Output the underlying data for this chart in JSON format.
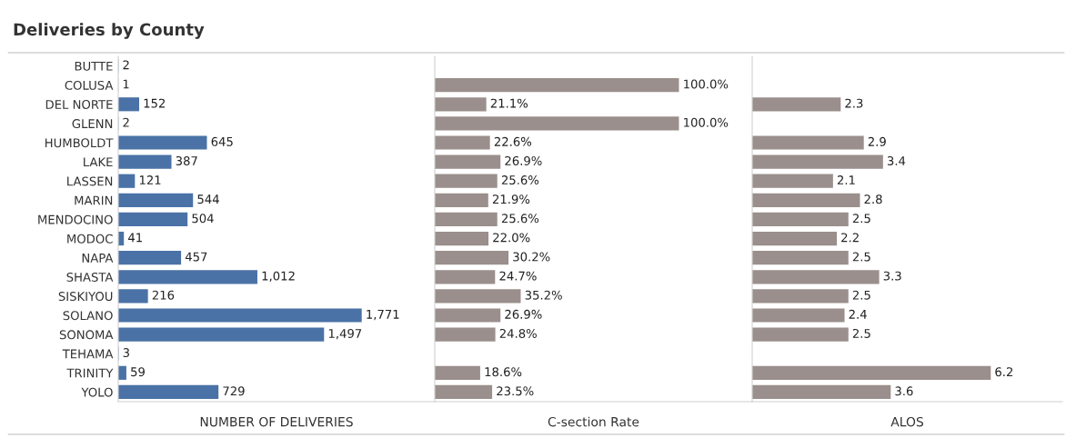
{
  "chart_data": [
    {
      "type": "bar",
      "orientation": "horizontal",
      "title": "Deliveries by County",
      "xlabel": "NUMBER OF DELIVERIES",
      "tick_labels": "y",
      "grid": false,
      "legend": false,
      "categories": [
        "BUTTE",
        "COLUSA",
        "DEL NORTE",
        "GLENN",
        "HUMBOLDT",
        "LAKE",
        "LASSEN",
        "MARIN",
        "MENDOCINO",
        "MODOC",
        "NAPA",
        "SHASTA",
        "SISKIYOU",
        "SOLANO",
        "SONOMA",
        "TEHAMA",
        "TRINITY",
        "YOLO"
      ],
      "series": [
        {
          "color": "#4a72a6",
          "values": [
            2,
            1,
            152,
            2,
            645,
            387,
            121,
            544,
            504,
            41,
            457,
            1012,
            216,
            1771,
            1497,
            3,
            59,
            729
          ],
          "value_labels": [
            "2",
            "1",
            "152",
            "2",
            "645",
            "387",
            "121",
            "544",
            "504",
            "41",
            "457",
            "1,012",
            "216",
            "1,771",
            "1,497",
            "3",
            "59",
            "729"
          ]
        }
      ]
    },
    {
      "type": "bar",
      "orientation": "horizontal",
      "xlabel": "C-section Rate",
      "tick_labels": false,
      "grid": false,
      "legend": false,
      "categories": [
        null,
        null,
        null,
        null,
        null,
        null,
        null,
        null,
        null,
        null,
        null,
        null,
        null,
        null,
        null,
        null,
        null,
        null
      ],
      "series": [
        {
          "color": "#9a8f8c",
          "values": [
            null,
            100.0,
            21.1,
            100.0,
            22.6,
            26.9,
            25.6,
            21.9,
            25.6,
            22.0,
            30.2,
            24.7,
            35.2,
            26.9,
            24.8,
            null,
            18.6,
            23.5
          ],
          "value_labels": [
            null,
            "100.0%",
            "21.1%",
            "100.0%",
            "22.6%",
            "26.9%",
            "25.6%",
            "21.9%",
            "25.6%",
            "22.0%",
            "30.2%",
            "24.7%",
            "35.2%",
            "26.9%",
            "24.8%",
            null,
            "18.6%",
            "23.5%"
          ]
        }
      ]
    },
    {
      "type": "bar",
      "orientation": "horizontal",
      "xlabel": "ALOS",
      "tick_labels": false,
      "grid": false,
      "legend": false,
      "categories": [
        null,
        null,
        null,
        null,
        null,
        null,
        null,
        null,
        null,
        null,
        null,
        null,
        null,
        null,
        null,
        null,
        null,
        null
      ],
      "series": [
        {
          "color": "#9a8f8c",
          "values": [
            null,
            null,
            2.3,
            null,
            2.9,
            3.4,
            2.1,
            2.8,
            2.5,
            2.2,
            2.5,
            3.3,
            2.5,
            2.4,
            2.5,
            null,
            6.2,
            3.6
          ],
          "value_labels": [
            null,
            null,
            "2.3",
            null,
            "2.9",
            "3.4",
            "2.1",
            "2.8",
            "2.5",
            "2.2",
            "2.5",
            "3.3",
            "2.5",
            "2.4",
            "2.5",
            null,
            "6.2",
            "3.6"
          ]
        }
      ]
    }
  ]
}
